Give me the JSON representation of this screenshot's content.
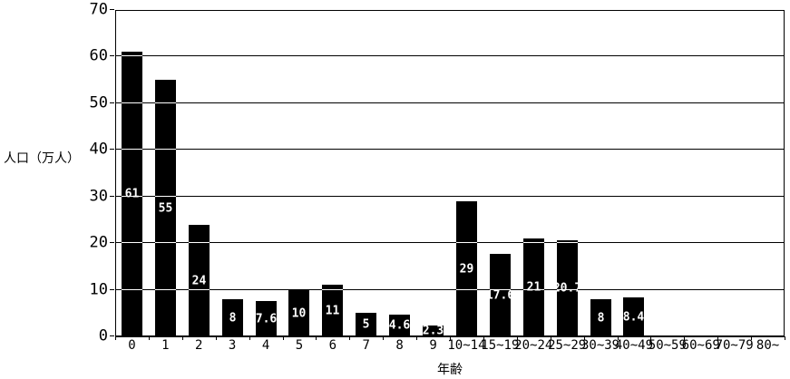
{
  "chart_data": {
    "type": "bar",
    "title": "",
    "ylabel": "人口（万人）",
    "xlabel": "年齢",
    "ylim": [
      0,
      70
    ],
    "yticks": [
      0,
      10,
      20,
      30,
      40,
      50,
      60,
      70
    ],
    "grid": true,
    "legend": "none",
    "bar_color": "#000000",
    "bar_label_color": "#ffffff",
    "background_color": "#ffffff",
    "categories": [
      "0",
      "1",
      "2",
      "3",
      "4",
      "5",
      "6",
      "7",
      "8",
      "9",
      "10~14",
      "15~19",
      "20~24",
      "25~29",
      "30~39",
      "40~49",
      "50~59",
      "60~69",
      "70~79",
      "80~"
    ],
    "values": [
      61,
      55,
      24,
      8,
      7.6,
      10,
      11,
      5,
      4.6,
      2.3,
      29,
      17.6,
      21,
      20.7,
      8,
      8.4,
      0,
      0,
      0,
      0
    ],
    "bar_labels": [
      "61",
      "55",
      "24",
      "8",
      "7.6",
      "10",
      "11",
      "5",
      "4.6",
      "2.3",
      "29",
      "17.6",
      "21",
      "20.7",
      "8",
      "8.4",
      "",
      "",
      "",
      ""
    ]
  }
}
